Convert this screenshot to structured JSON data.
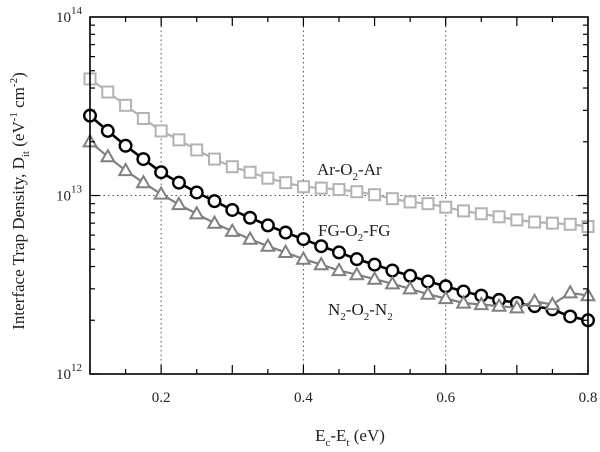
{
  "chart_data": {
    "type": "line",
    "title": "",
    "xlabel": {
      "main": "E",
      "sub1": "c",
      "mid": "-E",
      "sub2": "t",
      "unit": " (eV)"
    },
    "ylabel": {
      "main": "Interface Trap Density, D",
      "sub": "it",
      "unit_open": " (eV",
      "sup1": "-1",
      "mid": " cm",
      "sup2": "-2",
      "unit_close": ")"
    },
    "x_axis": {
      "range": [
        0.1,
        0.8
      ],
      "ticks": [
        0.2,
        0.4,
        0.6,
        0.8
      ],
      "tick_labels": [
        "0.2",
        "0.4",
        "0.6",
        "0.8"
      ],
      "scale": "linear"
    },
    "y_axis": {
      "range": [
        1000000000000.0,
        100000000000000.0
      ],
      "scale": "log",
      "tick_labels": [
        {
          "base": "10",
          "exp": "12",
          "value": 1000000000000.0
        },
        {
          "base": "10",
          "exp": "13",
          "value": 10000000000000.0
        },
        {
          "base": "10",
          "exp": "14",
          "value": 100000000000000.0
        }
      ]
    },
    "grid": "dotted at x = 0.2, 0.4, 0.6 and y = 1e13",
    "series": [
      {
        "name": "Ar-O2-Ar",
        "label": {
          "p1": "Ar-O",
          "s1": "2",
          "p2": "-Ar"
        },
        "marker": "square",
        "color": "#b3b3b3",
        "x": [
          0.1,
          0.125,
          0.15,
          0.175,
          0.2,
          0.225,
          0.25,
          0.275,
          0.3,
          0.325,
          0.35,
          0.375,
          0.4,
          0.425,
          0.45,
          0.475,
          0.5,
          0.525,
          0.55,
          0.575,
          0.6,
          0.625,
          0.65,
          0.675,
          0.7,
          0.725,
          0.75,
          0.775,
          0.8
        ],
        "y": [
          45000000000000.0,
          38000000000000.0,
          32000000000000.0,
          27000000000000.0,
          23000000000000.0,
          20500000000000.0,
          18000000000000.0,
          16000000000000.0,
          14500000000000.0,
          13500000000000.0,
          12500000000000.0,
          11800000000000.0,
          11200000000000.0,
          11000000000000.0,
          10800000000000.0,
          10500000000000.0,
          10100000000000.0,
          9600000000000.0,
          9200000000000.0,
          9000000000000.0,
          8600000000000.0,
          8200000000000.0,
          7900000000000.0,
          7600000000000.0,
          7300000000000.0,
          7100000000000.0,
          7000000000000.0,
          6900000000000.0,
          6700000000000.0
        ]
      },
      {
        "name": "FG-O2-FG",
        "label": {
          "p1": "FG-O",
          "s1": "2",
          "p2": "-FG"
        },
        "marker": "circle",
        "color": "#000000",
        "x": [
          0.1,
          0.125,
          0.15,
          0.175,
          0.2,
          0.225,
          0.25,
          0.275,
          0.3,
          0.325,
          0.35,
          0.375,
          0.4,
          0.425,
          0.45,
          0.475,
          0.5,
          0.525,
          0.55,
          0.575,
          0.6,
          0.625,
          0.65,
          0.675,
          0.7,
          0.725,
          0.75,
          0.775,
          0.8
        ],
        "y": [
          28000000000000.0,
          23000000000000.0,
          19000000000000.0,
          16000000000000.0,
          13500000000000.0,
          11800000000000.0,
          10400000000000.0,
          9300000000000.0,
          8300000000000.0,
          7500000000000.0,
          6800000000000.0,
          6200000000000.0,
          5700000000000.0,
          5200000000000.0,
          4800000000000.0,
          4400000000000.0,
          4100000000000.0,
          3800000000000.0,
          3550000000000.0,
          3300000000000.0,
          3100000000000.0,
          2900000000000.0,
          2750000000000.0,
          2600000000000.0,
          2500000000000.0,
          2400000000000.0,
          2300000000000.0,
          2100000000000.0,
          2000000000000.0
        ]
      },
      {
        "name": "N2-O2-N2",
        "label": {
          "p1": "N",
          "s1": "2",
          "p2": "-O",
          "s2": "2",
          "p3": "-N",
          "s3": "2"
        },
        "marker": "triangle",
        "color": "#808080",
        "x": [
          0.1,
          0.125,
          0.15,
          0.175,
          0.2,
          0.225,
          0.25,
          0.275,
          0.3,
          0.325,
          0.35,
          0.375,
          0.4,
          0.425,
          0.45,
          0.475,
          0.5,
          0.525,
          0.55,
          0.575,
          0.6,
          0.625,
          0.65,
          0.675,
          0.7,
          0.725,
          0.75,
          0.775,
          0.8
        ],
        "y": [
          20000000000000.0,
          16500000000000.0,
          13800000000000.0,
          11800000000000.0,
          10200000000000.0,
          8900000000000.0,
          7900000000000.0,
          7000000000000.0,
          6300000000000.0,
          5700000000000.0,
          5200000000000.0,
          4800000000000.0,
          4400000000000.0,
          4100000000000.0,
          3800000000000.0,
          3600000000000.0,
          3400000000000.0,
          3200000000000.0,
          3000000000000.0,
          2800000000000.0,
          2650000000000.0,
          2500000000000.0,
          2450000000000.0,
          2400000000000.0,
          2350000000000.0,
          2550000000000.0,
          2450000000000.0,
          2850000000000.0,
          2750000000000.0
        ]
      }
    ]
  }
}
